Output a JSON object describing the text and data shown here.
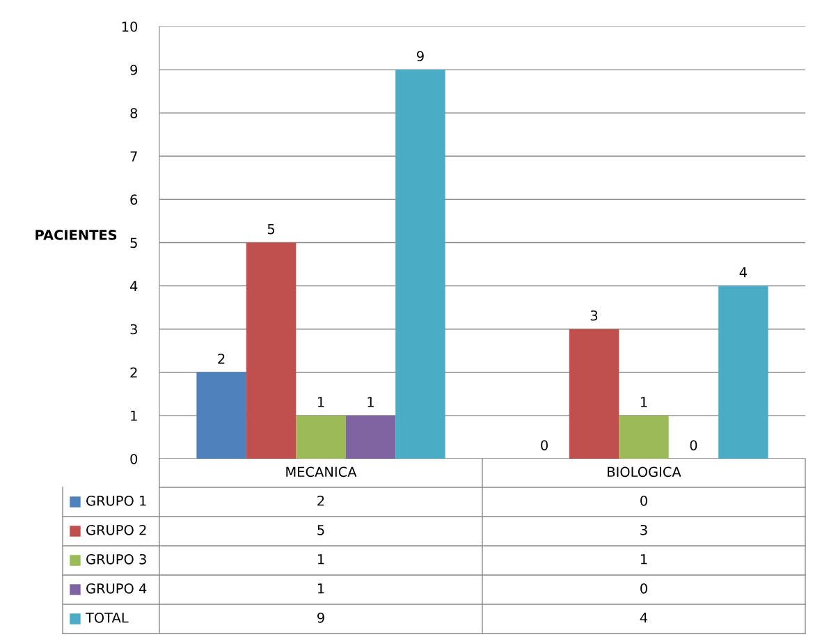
{
  "chart_data": {
    "type": "bar",
    "ylabel": "PACIENTES",
    "categories": [
      "MECANICA",
      "BIOLOGICA"
    ],
    "series": [
      {
        "name": "GRUPO 1",
        "color": "#4f81bd",
        "values": [
          2,
          0
        ],
        "value_labels": [
          "2",
          "0"
        ]
      },
      {
        "name": "GRUPO 2",
        "color": "#c0504d",
        "values": [
          5,
          3
        ],
        "value_labels": [
          "5",
          "3"
        ]
      },
      {
        "name": "GRUPO 3",
        "color": "#9bbb59",
        "values": [
          1,
          1
        ],
        "value_labels": [
          "1",
          "1"
        ]
      },
      {
        "name": "GRUPO 4",
        "color": "#8064a2",
        "values": [
          1,
          0
        ],
        "value_labels": [
          "1",
          "0"
        ]
      },
      {
        "name": "TOTAL",
        "color": "#4bacc6",
        "values": [
          9,
          4
        ],
        "value_labels": [
          "9",
          "4"
        ]
      }
    ],
    "ylim": [
      0,
      10
    ],
    "yticks": [
      0,
      1,
      2,
      3,
      4,
      5,
      6,
      7,
      8,
      9,
      10
    ],
    "grid": "y",
    "data_labels": true,
    "legend": "bottom"
  }
}
